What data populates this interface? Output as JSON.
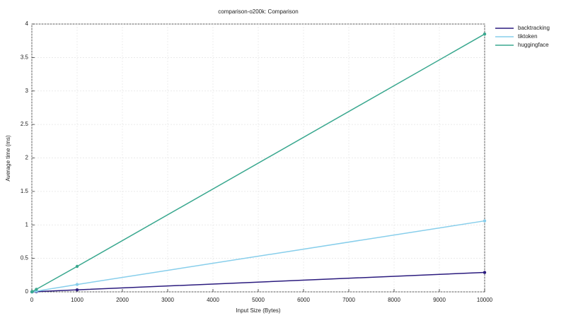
{
  "chart_data": {
    "type": "line",
    "title": "comparison-o200k: Comparison",
    "x_label": "Input Size (Bytes)",
    "y_label": "Average time (ms)",
    "x": [
      1,
      10,
      100,
      1000,
      10000
    ],
    "series": [
      {
        "name": "backtracking",
        "color": "#2b1b7e",
        "values": [
          3e-05,
          0.0003,
          0.003,
          0.03,
          0.29
        ]
      },
      {
        "name": "tiktoken",
        "color": "#87ceeb",
        "values": [
          0.0001,
          0.001,
          0.011,
          0.11,
          1.06
        ]
      },
      {
        "name": "huggingface",
        "color": "#3aa88f",
        "values": [
          0.0004,
          0.004,
          0.038,
          0.38,
          3.85
        ]
      }
    ],
    "xlim": [
      0,
      10000
    ],
    "xticks": [
      0,
      1000,
      2000,
      3000,
      4000,
      5000,
      6000,
      7000,
      8000,
      9000,
      10000
    ],
    "ylim": [
      0,
      4
    ],
    "yticks": [
      0,
      0.5,
      1,
      1.5,
      2,
      2.5,
      3,
      3.5,
      4
    ],
    "grid": true,
    "legend": "top-right"
  }
}
